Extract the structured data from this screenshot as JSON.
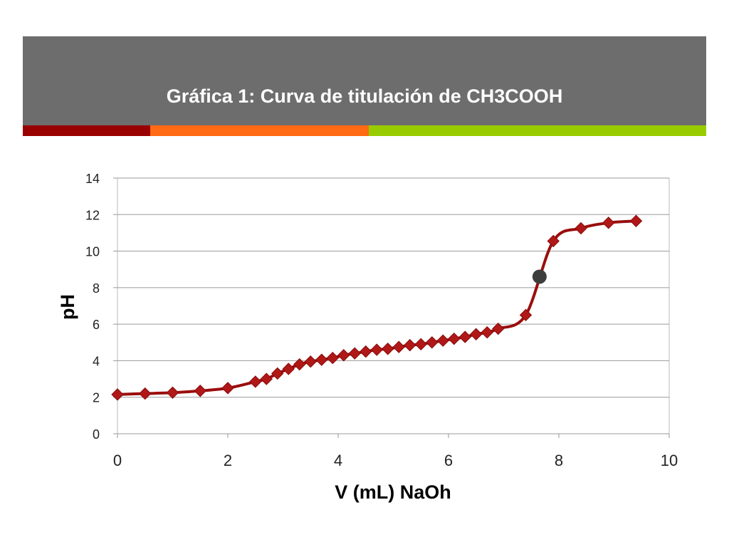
{
  "slide": {
    "title_bar_color": "#6d6d6d",
    "accent_strip": [
      "#990000",
      "#ff6a13",
      "#99cc00"
    ]
  },
  "chart_data": {
    "type": "line",
    "title": "Gráfica 1: Curva de titulación de CH3COOH",
    "xlabel": "V  (mL) NaOh",
    "ylabel": "pH",
    "xlim": [
      0,
      10
    ],
    "ylim": [
      0,
      14
    ],
    "x_ticks": [
      "0",
      "2",
      "4",
      "6",
      "8",
      "10"
    ],
    "y_ticks": [
      "0",
      "2",
      "4",
      "6",
      "8",
      "10",
      "12",
      "14"
    ],
    "grid": "horizontal",
    "legend": "none",
    "series": [
      {
        "color": "#9b0d0d",
        "marker": "diamond",
        "x": [
          0,
          0.5,
          1.0,
          1.5,
          2.0,
          2.5,
          2.7,
          2.9,
          3.1,
          3.3,
          3.5,
          3.7,
          3.9,
          4.1,
          4.3,
          4.5,
          4.7,
          4.9,
          5.1,
          5.3,
          5.5,
          5.7,
          5.9,
          6.1,
          6.3,
          6.5,
          6.7,
          6.9,
          7.4,
          7.9,
          8.4,
          8.9,
          9.4
        ],
        "y": [
          2.15,
          2.2,
          2.25,
          2.35,
          2.5,
          2.85,
          3.0,
          3.3,
          3.55,
          3.8,
          3.95,
          4.05,
          4.15,
          4.3,
          4.4,
          4.5,
          4.6,
          4.65,
          4.75,
          4.85,
          4.9,
          5.0,
          5.1,
          5.2,
          5.3,
          5.45,
          5.55,
          5.75,
          6.5,
          10.55,
          11.25,
          11.55,
          11.65
        ]
      }
    ],
    "annotation_point": {
      "x": 7.65,
      "y": 8.6,
      "color": "#3d3d3d"
    }
  }
}
